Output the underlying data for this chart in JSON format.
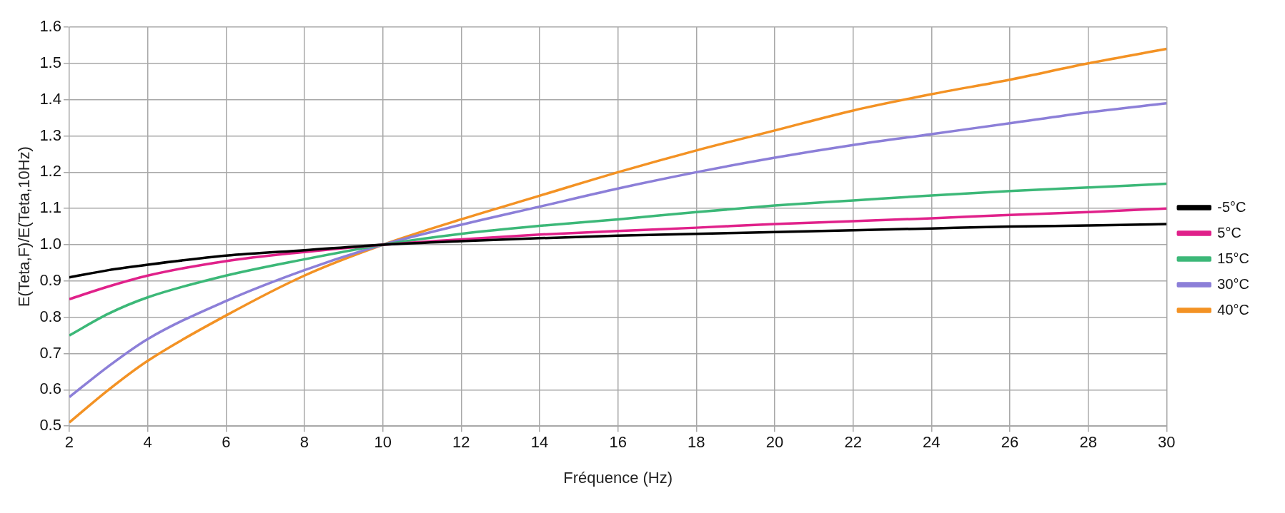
{
  "chart_data": {
    "type": "line",
    "xlabel": "Fréquence (Hz)",
    "ylabel": "E(Teta,F)/E(Teta,10Hz)",
    "x": [
      2,
      3,
      4,
      6,
      8,
      10,
      12,
      14,
      16,
      18,
      20,
      22,
      24,
      26,
      28,
      30
    ],
    "series": [
      {
        "name": "-5°C",
        "color": "#000000",
        "values": [
          0.91,
          0.93,
          0.945,
          0.97,
          0.985,
          1.0,
          1.01,
          1.018,
          1.025,
          1.03,
          1.035,
          1.04,
          1.045,
          1.05,
          1.053,
          1.057
        ]
      },
      {
        "name": "5°C",
        "color": "#e0218a",
        "values": [
          0.85,
          0.885,
          0.915,
          0.955,
          0.98,
          1.0,
          1.015,
          1.028,
          1.038,
          1.047,
          1.057,
          1.065,
          1.073,
          1.082,
          1.09,
          1.1
        ]
      },
      {
        "name": "15°C",
        "color": "#3cb878",
        "values": [
          0.75,
          0.81,
          0.855,
          0.915,
          0.96,
          1.0,
          1.03,
          1.052,
          1.07,
          1.09,
          1.108,
          1.122,
          1.136,
          1.148,
          1.158,
          1.168
        ]
      },
      {
        "name": "30°C",
        "color": "#8c7fd8",
        "values": [
          0.58,
          0.665,
          0.74,
          0.845,
          0.93,
          1.0,
          1.055,
          1.105,
          1.155,
          1.2,
          1.24,
          1.275,
          1.305,
          1.335,
          1.365,
          1.39
        ]
      },
      {
        "name": "40°C",
        "color": "#f39224",
        "values": [
          0.51,
          0.6,
          0.68,
          0.805,
          0.915,
          1.0,
          1.07,
          1.135,
          1.2,
          1.26,
          1.315,
          1.37,
          1.415,
          1.455,
          1.5,
          1.54
        ]
      }
    ],
    "xlim": [
      2,
      30
    ],
    "xticks": [
      2,
      4,
      6,
      8,
      10,
      12,
      14,
      16,
      18,
      20,
      22,
      24,
      26,
      28,
      30
    ],
    "ylim": [
      0.5,
      1.6
    ],
    "yticks": [
      {
        "value": 0.5,
        "label": "0.5"
      },
      {
        "value": 0.6,
        "label": "0.6"
      },
      {
        "value": 0.7,
        "label": "0.7"
      },
      {
        "value": 0.8,
        "label": "0.8"
      },
      {
        "value": 0.9,
        "label": "0.9"
      },
      {
        "value": 1.0,
        "label": "1.0"
      },
      {
        "value": 1.1,
        "label": "1.1"
      },
      {
        "value": 1.2,
        "label": "1.2"
      },
      {
        "value": 1.3,
        "label": "1.3"
      },
      {
        "value": 1.4,
        "label": "1.4"
      },
      {
        "value": 1.5,
        "label": "1.5"
      },
      {
        "value": 1.6,
        "label": "1.6"
      }
    ],
    "grid": true,
    "legend": "right",
    "marker": "none",
    "line_style": "solid"
  }
}
